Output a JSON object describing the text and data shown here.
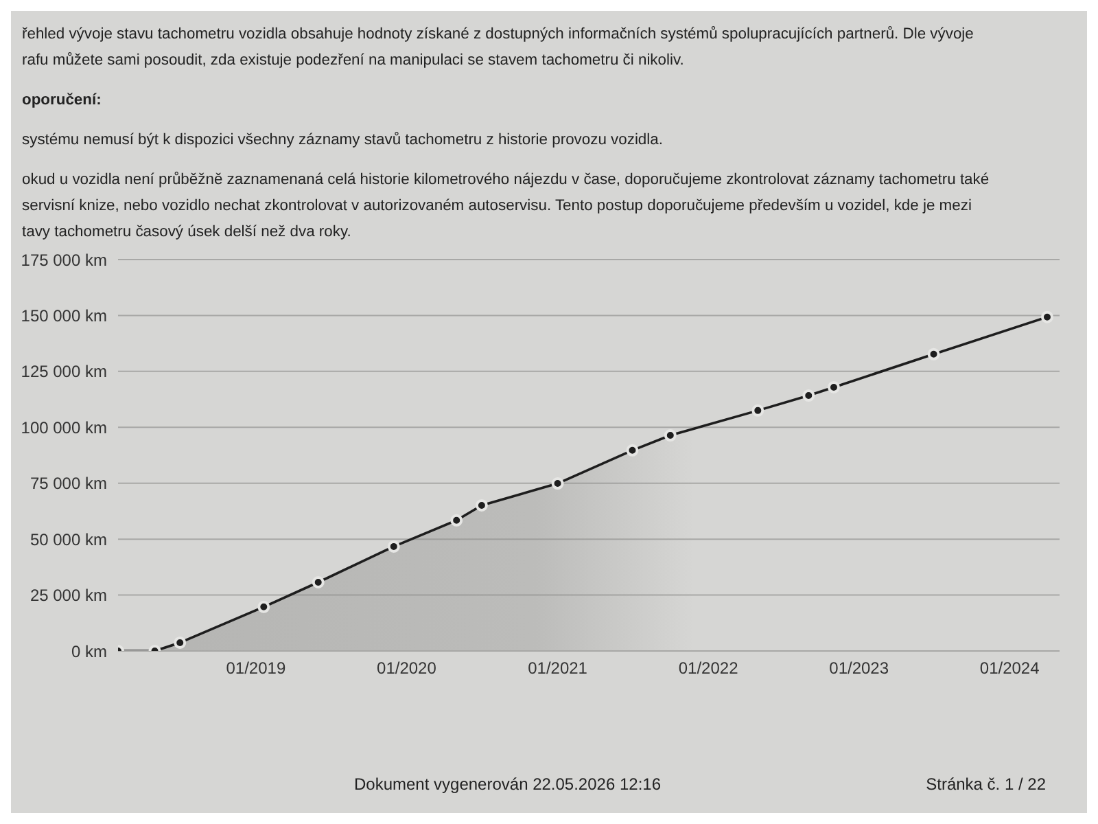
{
  "chart_data": {
    "type": "area",
    "x": [
      "2018-02",
      "2018-05",
      "2018-07",
      "2019-01-20",
      "2019-06",
      "2019-12",
      "2020-05",
      "2020-07",
      "2021-01",
      "2021-07",
      "2021-10",
      "2022-05",
      "2022-09",
      "2022-11",
      "2023-07",
      "2024-04"
    ],
    "series": [
      {
        "color": "#1e1e1e",
        "values": [
          0,
          0,
          3700,
          19700,
          30700,
          46700,
          58400,
          65100,
          74900,
          89700,
          96400,
          107500,
          114200,
          117900,
          132700,
          149300
        ]
      }
    ],
    "xlim": [
      "2018-02",
      "2024-05"
    ],
    "xticks": [
      {
        "value": "2019-01",
        "label": "01/2019"
      },
      {
        "value": "2020-01",
        "label": "01/2020"
      },
      {
        "value": "2021-01",
        "label": "01/2021"
      },
      {
        "value": "2022-01",
        "label": "01/2022"
      },
      {
        "value": "2023-01",
        "label": "01/2023"
      },
      {
        "value": "2024-01",
        "label": "01/2024"
      }
    ],
    "ylim": [
      0,
      175000
    ],
    "yticks": [
      {
        "value": 0,
        "label": "0 km"
      },
      {
        "value": 25000,
        "label": "25 000 km"
      },
      {
        "value": 50000,
        "label": "50 000 km"
      },
      {
        "value": 75000,
        "label": "75 000 km"
      },
      {
        "value": 100000,
        "label": "100 000 km"
      },
      {
        "value": 125000,
        "label": "125 000 km"
      },
      {
        "value": 150000,
        "label": "150 000 km"
      },
      {
        "value": 175000,
        "label": "175 000 km"
      }
    ],
    "grid": "y",
    "marker": "circle",
    "line_style": "solid",
    "annotations": [
      "řehled vývoje stavu tachometru vozidla obsahuje hodnoty získané z dostupných informačních systémů spolupracujících partnerů. Dle vývoje",
      "rafu můžete sami posoudit, zda existuje podezření na manipulaci se stavem tachometru či nikoliv.",
      "oporučení:",
      "systému nemusí být k dispozici všechny záznamy stavů tachometru z historie provozu vozidla.",
      "okud u vozidla není průběžně zaznamenaná celá historie kilometrového nájezdu v čase, doporučujeme zkontrolovat záznamy tachometru také",
      "servisní knize, nebo vozidlo nechat zkontrolovat v autorizovaném autoservisu. Tento postup doporučujeme především u vozidel, kde je mezi",
      "tavy tachometru časový úsek delší než dva roky.",
      "Dokument vygenerován 22.05.2026 12:16",
      "Stránka č. 1 / 22"
    ]
  }
}
